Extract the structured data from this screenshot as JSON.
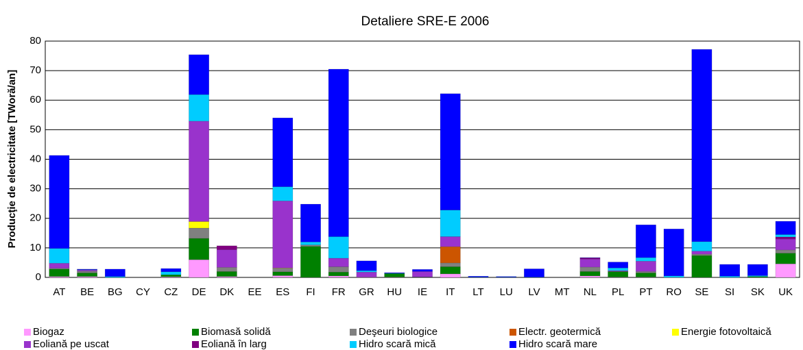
{
  "chart_data": {
    "type": "stacked_bar",
    "title": "Detaliere SRE-E 2006",
    "y_label": "Producţie de electricitate [TWoră/an]",
    "categories": [
      "AT",
      "BE",
      "BG",
      "CY",
      "CZ",
      "DE",
      "DK",
      "EE",
      "ES",
      "FI",
      "FR",
      "GR",
      "HU",
      "IE",
      "IT",
      "LT",
      "LU",
      "LV",
      "MT",
      "NL",
      "PL",
      "PT",
      "RO",
      "SE",
      "SI",
      "SK",
      "UK"
    ],
    "ylim": [
      0,
      80
    ],
    "yticks": [
      0,
      10,
      20,
      30,
      40,
      50,
      60,
      70,
      80
    ],
    "grid": true,
    "legend": "bottom",
    "series": [
      {
        "name": "Biogaz",
        "color": "#ff99ff",
        "values": [
          0.3,
          0.3,
          0,
          0,
          0.2,
          6,
          0.3,
          0,
          0.6,
          0,
          0.5,
          0.1,
          0.1,
          0,
          1.2,
          0,
          0,
          0,
          0,
          0.5,
          0.1,
          0.1,
          0,
          0,
          0,
          0,
          4.6
        ]
      },
      {
        "name": "Biomasă solidă",
        "color": "#008000",
        "values": [
          2.5,
          1.2,
          0,
          0,
          0.7,
          7.2,
          1.7,
          0,
          1.3,
          10.5,
          1.3,
          0,
          1.2,
          0.1,
          2.4,
          0,
          0,
          0,
          0,
          1.5,
          1.9,
          1.4,
          0,
          7.4,
          0,
          0.3,
          3.6
        ]
      },
      {
        "name": "Deşeuri biologice",
        "color": "#808080",
        "values": [
          0.3,
          0.6,
          0,
          0,
          0,
          3.5,
          1.4,
          0,
          1.2,
          0.5,
          1.8,
          0,
          0,
          0,
          1.3,
          0,
          0,
          0,
          0,
          1.5,
          0,
          0.5,
          0,
          0.5,
          0,
          0,
          1.1
        ]
      },
      {
        "name": "Electr. geotermică",
        "color": "#cc5500",
        "values": [
          0,
          0,
          0,
          0,
          0,
          0,
          0,
          0,
          0,
          0,
          0,
          0,
          0,
          0,
          5.5,
          0,
          0,
          0,
          0,
          0,
          0,
          0,
          0,
          0,
          0,
          0,
          0
        ]
      },
      {
        "name": "Energie fotovoltaică",
        "color": "#ffff00",
        "values": [
          0,
          0,
          0,
          0,
          0,
          2.2,
          0,
          0,
          0.1,
          0,
          0,
          0,
          0,
          0,
          0,
          0,
          0,
          0,
          0,
          0,
          0,
          0,
          0,
          0,
          0,
          0,
          0
        ]
      },
      {
        "name": "Eoliană pe uscat",
        "color": "#9933cc",
        "values": [
          1.7,
          0.4,
          0,
          0,
          0,
          34,
          6,
          0,
          22.7,
          0,
          2.9,
          1.7,
          0,
          1.9,
          3.4,
          0,
          0,
          0,
          0,
          2.7,
          0.3,
          3.5,
          0,
          1,
          0,
          0,
          3.7
        ]
      },
      {
        "name": "Eoliană în larg",
        "color": "#800080",
        "values": [
          0,
          0,
          0,
          0,
          0,
          0,
          1.3,
          0,
          0,
          0,
          0,
          0,
          0,
          0,
          0,
          0,
          0,
          0,
          0,
          0.4,
          0,
          0,
          0,
          0,
          0,
          0,
          0.7
        ]
      },
      {
        "name": "Hidro scară mică",
        "color": "#00ccff",
        "values": [
          5,
          0.1,
          0.3,
          0,
          1,
          9,
          0,
          0,
          4.8,
          1,
          7.3,
          0.5,
          0.1,
          0,
          9,
          0.1,
          0.1,
          0.1,
          0,
          0,
          0.9,
          1.2,
          0.5,
          3.2,
          0.4,
          0.3,
          0.8
        ]
      },
      {
        "name": "Hidro scară mare",
        "color": "#0000ff",
        "values": [
          31.5,
          0.2,
          2.5,
          0,
          1.1,
          13.5,
          0,
          0,
          23.3,
          12.8,
          56.7,
          3.3,
          0.2,
          0.7,
          39.4,
          0.3,
          0.2,
          2.8,
          0,
          0.1,
          2,
          11.1,
          15.9,
          65.1,
          4,
          3.8,
          4.5
        ]
      }
    ]
  }
}
